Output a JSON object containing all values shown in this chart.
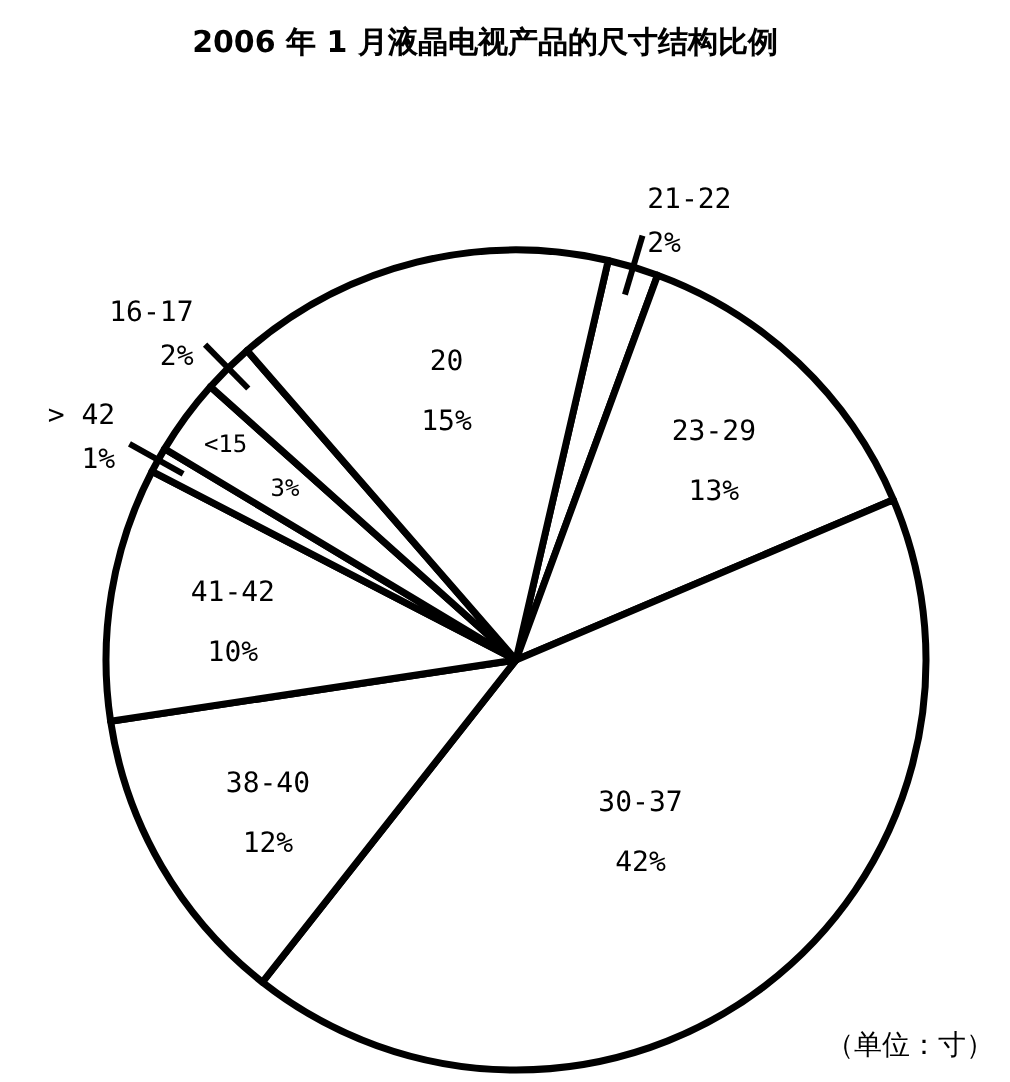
{
  "chart_data": {
    "type": "pie",
    "title": "2006 年 1 月液晶电视产品的尺寸结构比例",
    "categories": [
      "21-22",
      "23-29",
      "30-37",
      "38-40",
      "41-42",
      "> 42",
      "<15",
      "16-17",
      "20"
    ],
    "values": [
      2,
      13,
      42,
      12,
      10,
      1,
      3,
      2,
      15
    ],
    "colors": [
      "#ffffff",
      "#ffffff",
      "#ffffff",
      "#ffffff",
      "#ffffff",
      "#ffffff",
      "#ffffff",
      "#ffffff",
      "#ffffff"
    ],
    "value_labels": [
      "2%",
      "13%",
      "42%",
      "12%",
      "10%",
      "1%",
      "3%",
      "2%",
      "15%"
    ],
    "annotations": [
      "（单位：寸）"
    ]
  }
}
